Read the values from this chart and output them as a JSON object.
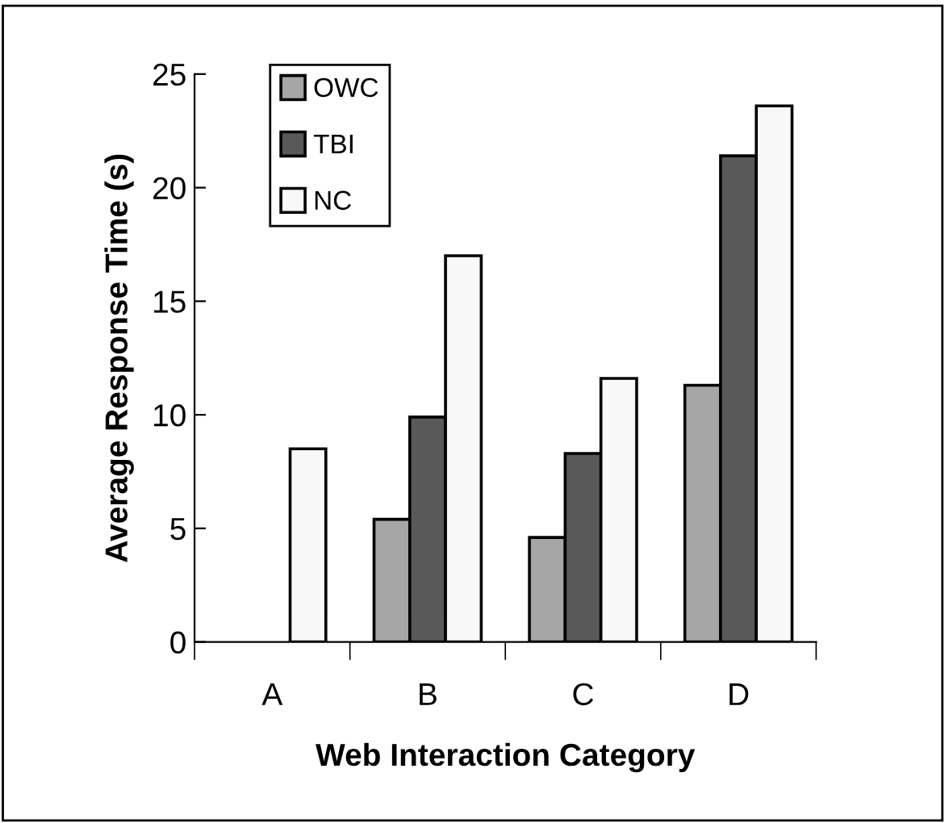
{
  "chart_data": {
    "type": "bar",
    "xlabel": "Web Interaction Category",
    "ylabel": "Average Response Time (s)",
    "categories": [
      "A",
      "B",
      "C",
      "D"
    ],
    "series": [
      {
        "name": "OWC",
        "color": "#a6a6a6",
        "values": [
          null,
          5.4,
          4.6,
          11.3
        ]
      },
      {
        "name": "TBI",
        "color": "#595959",
        "values": [
          null,
          9.9,
          8.3,
          21.4
        ]
      },
      {
        "name": "NC",
        "color": "#f8f8f8",
        "values": [
          8.5,
          17.0,
          11.6,
          23.6
        ]
      }
    ],
    "ylim": [
      0,
      25
    ],
    "yticks": [
      0,
      5,
      10,
      15,
      20,
      25
    ],
    "grid": false,
    "legend": "top left"
  }
}
